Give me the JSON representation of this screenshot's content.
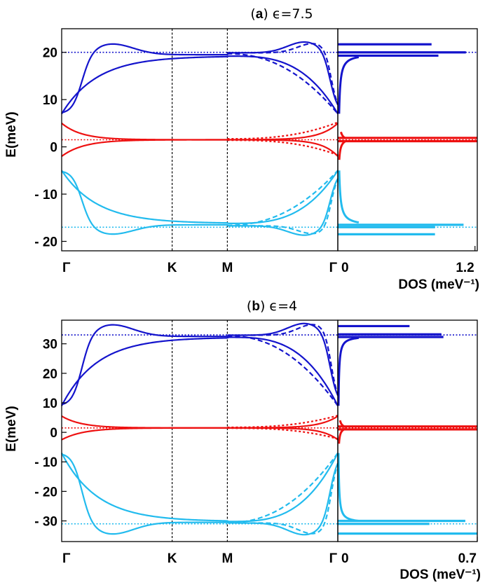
{
  "chart_data": [
    {
      "type": "line",
      "panel_label": "a",
      "title": "ϵ=7.5",
      "ylabel": "E(meV)",
      "xlabel": "DOS (meV⁻¹)",
      "ylim": [
        -22,
        25
      ],
      "yticks": [
        20,
        10,
        0,
        -10,
        -20
      ],
      "ytick_labels": [
        "20",
        "10",
        "0",
        "- 10",
        "- 20"
      ],
      "x_ticks": [
        "Γ",
        "K",
        "M",
        "Γ"
      ],
      "x_tick_positions": [
        0,
        1,
        1.5,
        2.5
      ],
      "dos_xlim": [
        0,
        1.22
      ],
      "dos_ticks": [
        0,
        1.2
      ],
      "dos_tick_labels": [
        "0",
        "1.2"
      ],
      "reference_lines": [
        {
          "name": "upper",
          "y": 20,
          "color": "#1414cc"
        },
        {
          "name": "flat",
          "y": 1.5,
          "color": "#ee1111"
        },
        {
          "name": "lower",
          "y": -17,
          "color": "#22bbee"
        }
      ],
      "band_params": {
        "gamma_top": 7,
        "max": 21.8,
        "plateau": 19.5,
        "top": 20,
        "flat": 1.5,
        "split": 3.5,
        "low_top": -5,
        "low_max": -18.5,
        "low_plateau": -16.5
      },
      "dos_peaks": [
        {
          "y": 21.7,
          "value": 0.82,
          "color": "#1414cc"
        },
        {
          "y": 20.0,
          "value": 1.12,
          "color": "#1414cc"
        },
        {
          "y": 19.3,
          "value": 0.88,
          "color": "#1414cc"
        },
        {
          "y": 1.9,
          "value": 1.22,
          "color": "#ee1111"
        },
        {
          "y": 1.2,
          "value": 1.22,
          "color": "#ee1111"
        },
        {
          "y": -16.5,
          "value": 1.1,
          "color": "#22bbee"
        },
        {
          "y": -17.0,
          "value": 0.85,
          "color": "#22bbee"
        },
        {
          "y": -18.5,
          "value": 0.85,
          "color": "#22bbee"
        }
      ],
      "colors": {
        "upper": "#1414cc",
        "flat": "#ee1111",
        "lower": "#22bbee"
      }
    },
    {
      "type": "line",
      "panel_label": "b",
      "title": "ϵ=4",
      "ylabel": "E(meV)",
      "xlabel": "DOS (meV⁻¹)",
      "ylim": [
        -37,
        38
      ],
      "yticks": [
        30,
        20,
        10,
        0,
        -10,
        -20,
        -30
      ],
      "ytick_labels": [
        "30",
        "20",
        "10",
        "0",
        "- 10",
        "- 20",
        "- 30"
      ],
      "x_ticks": [
        "Γ",
        "K",
        "M",
        "Γ"
      ],
      "x_tick_positions": [
        0,
        1,
        1.5,
        2.5
      ],
      "dos_xlim": [
        0,
        0.7
      ],
      "dos_ticks": [
        0,
        0.7
      ],
      "dos_tick_labels": [
        "0",
        "0.7"
      ],
      "reference_lines": [
        {
          "name": "upper",
          "y": 33,
          "color": "#1414cc"
        },
        {
          "name": "flat",
          "y": 1.5,
          "color": "#ee1111"
        },
        {
          "name": "lower",
          "y": -31,
          "color": "#22bbee"
        }
      ],
      "band_params": {
        "gamma_top": 9,
        "max": 36.5,
        "plateau": 32.5,
        "top": 33,
        "flat": 1.5,
        "split": 4,
        "low_top": -7,
        "low_max": -34.5,
        "low_plateau": -30.5
      },
      "dos_peaks": [
        {
          "y": 36.0,
          "value": 0.36,
          "color": "#1414cc"
        },
        {
          "y": 33.2,
          "value": 0.52,
          "color": "#1414cc"
        },
        {
          "y": 32.3,
          "value": 0.53,
          "color": "#1414cc"
        },
        {
          "y": 2.0,
          "value": 0.7,
          "color": "#ee1111"
        },
        {
          "y": 1.0,
          "value": 0.7,
          "color": "#ee1111"
        },
        {
          "y": -30.0,
          "value": 0.64,
          "color": "#22bbee"
        },
        {
          "y": -31.0,
          "value": 0.46,
          "color": "#22bbee"
        },
        {
          "y": -34.3,
          "value": 0.7,
          "color": "#22bbee"
        }
      ],
      "colors": {
        "upper": "#1414cc",
        "flat": "#ee1111",
        "lower": "#22bbee"
      }
    }
  ]
}
